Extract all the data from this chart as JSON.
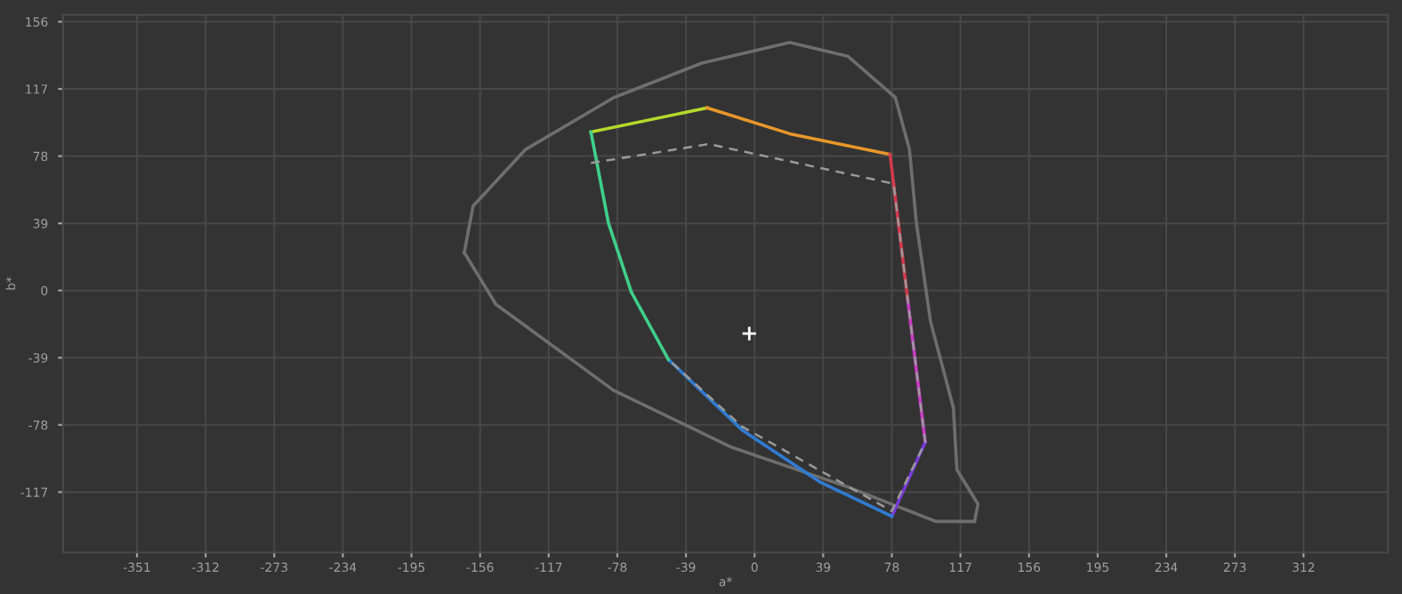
{
  "chart_data": {
    "type": "line",
    "xlabel": "a*",
    "ylabel": "b*",
    "xlim": [
      -393,
      360
    ],
    "ylim": [
      -152,
      160
    ],
    "xticks": [
      -351,
      -312,
      -273,
      -234,
      -195,
      -156,
      -117,
      -78,
      -39,
      0,
      39,
      78,
      117,
      156,
      195,
      234,
      273,
      312
    ],
    "yticks": [
      -117,
      -78,
      -39,
      0,
      39,
      78,
      117,
      156
    ],
    "grid": true,
    "series": [
      {
        "color": "#6e6e6e",
        "x": [
          -165,
          -160,
          -130,
          -80,
          -30,
          20,
          53,
          80,
          88,
          92,
          100,
          113,
          115,
          127,
          125
        ],
        "values": [
          22,
          49,
          82,
          112,
          132,
          144,
          136,
          112,
          82,
          39,
          -18,
          -68,
          -104,
          -124,
          -134
        ]
      },
      {
        "color": "#6e6e6e",
        "x": [
          125,
          103,
          53,
          -13,
          -80,
          -147,
          -165
        ],
        "values": [
          -134,
          -134,
          -114,
          -91,
          -58,
          -8,
          22
        ]
      },
      {
        "color": "#9a9a9a",
        "line_style": "dashed",
        "x": [
          -93,
          -26,
          79,
          97,
          78,
          -7,
          -49
        ],
        "values": [
          74,
          85,
          62,
          -88,
          -128,
          -79,
          -40
        ]
      },
      {
        "color": "#b5d92a",
        "x": [
          -93,
          -27
        ],
        "values": [
          92,
          106
        ]
      },
      {
        "color": "#e8962a",
        "x": [
          -27,
          20,
          77
        ],
        "values": [
          106,
          91,
          79
        ]
      },
      {
        "color": "#d23a4c",
        "x": [
          77,
          87
        ],
        "values": [
          79,
          -5
        ]
      },
      {
        "color": "#c83cc4",
        "x": [
          87,
          97
        ],
        "values": [
          -5,
          -88
        ]
      },
      {
        "color": "#7a3ad8",
        "x": [
          97,
          78
        ],
        "values": [
          -88,
          -131
        ]
      },
      {
        "color": "#2f7bd0",
        "x": [
          78,
          37,
          -7,
          -49
        ],
        "values": [
          -131,
          -111,
          -81,
          -40
        ]
      },
      {
        "color": "#3fd08a",
        "x": [
          -49,
          -70,
          -83,
          -93
        ],
        "values": [
          -40,
          -1,
          39,
          92
        ]
      },
      {
        "type": "scatter",
        "marker": "cross",
        "color": "#ffffff",
        "x": [
          -3
        ],
        "values": [
          -25
        ]
      }
    ]
  }
}
